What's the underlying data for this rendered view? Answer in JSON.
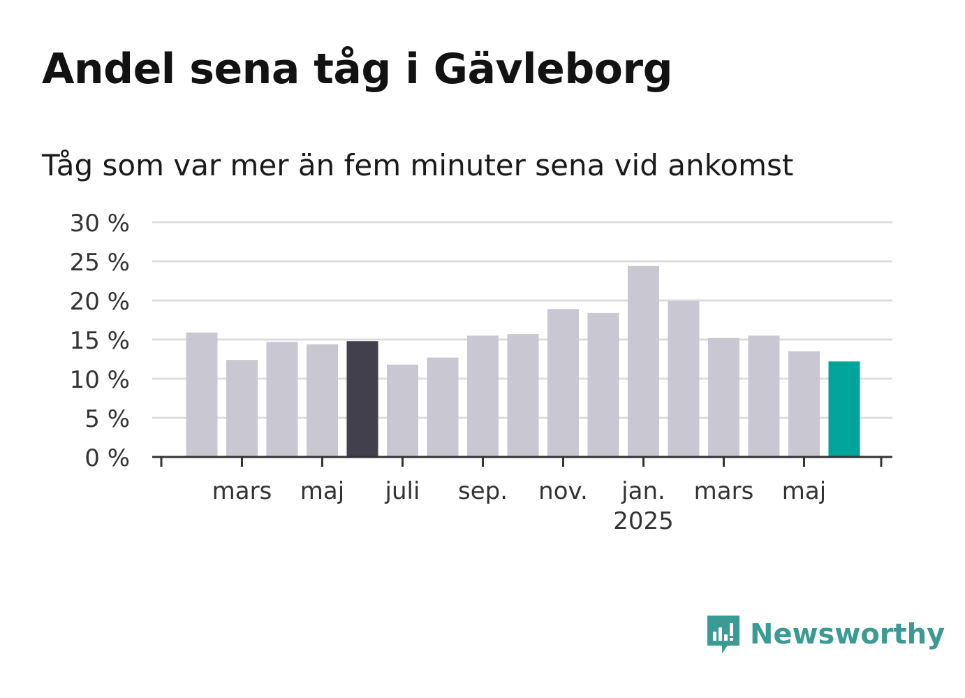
{
  "header": {
    "title": "Andel sena tåg i Gävleborg",
    "subtitle": "Tåg som var mer än fem minuter sena vid ankomst"
  },
  "chart_data": {
    "type": "bar",
    "title": "Andel sena tåg i Gävleborg",
    "subtitle": "Tåg som var mer än fem minuter sena vid ankomst",
    "xlabel": "",
    "ylabel": "",
    "x": [
      "2024-02",
      "2024-03",
      "2024-04",
      "2024-05",
      "2024-06",
      "2024-07",
      "2024-08",
      "2024-09",
      "2024-10",
      "2024-11",
      "2024-12",
      "2025-01",
      "2025-02",
      "2025-03",
      "2025-04",
      "2025-05",
      "2025-06"
    ],
    "values": [
      15.9,
      12.4,
      14.7,
      14.4,
      14.8,
      11.8,
      12.7,
      15.5,
      15.7,
      18.9,
      18.4,
      24.4,
      19.9,
      15.2,
      15.5,
      13.5,
      12.2
    ],
    "ylim": [
      0,
      30
    ],
    "yticks": [
      0,
      5,
      10,
      15,
      20,
      25,
      30
    ],
    "ytick_labels": [
      "0 %",
      "5 %",
      "10 %",
      "15 %",
      "20 %",
      "25 %",
      "30 %"
    ],
    "xtick_labels": [
      {
        "label": "mars",
        "at": "2024-03"
      },
      {
        "label": "maj",
        "at": "2024-05"
      },
      {
        "label": "juli",
        "at": "2024-07"
      },
      {
        "label": "sep.",
        "at": "2024-09"
      },
      {
        "label": "nov.",
        "at": "2024-11"
      },
      {
        "label": "jan.",
        "at": "2025-01",
        "sublabel": "2025"
      },
      {
        "label": "mars",
        "at": "2025-03"
      },
      {
        "label": "maj",
        "at": "2025-05"
      }
    ],
    "grid": true,
    "colors": {
      "default": "#c8c7d2",
      "highlight_prior_year": "#42404c",
      "highlight_latest": "#00a49a",
      "gridline": "#dddddd",
      "axis": "#333333"
    },
    "highlight": {
      "2024-06": "highlight_prior_year",
      "2025-06": "highlight_latest"
    }
  },
  "branding": {
    "logo_icon": "newsworthy-logo-icon",
    "logo_text": "Newsworthy",
    "color": "#3a9a94"
  }
}
